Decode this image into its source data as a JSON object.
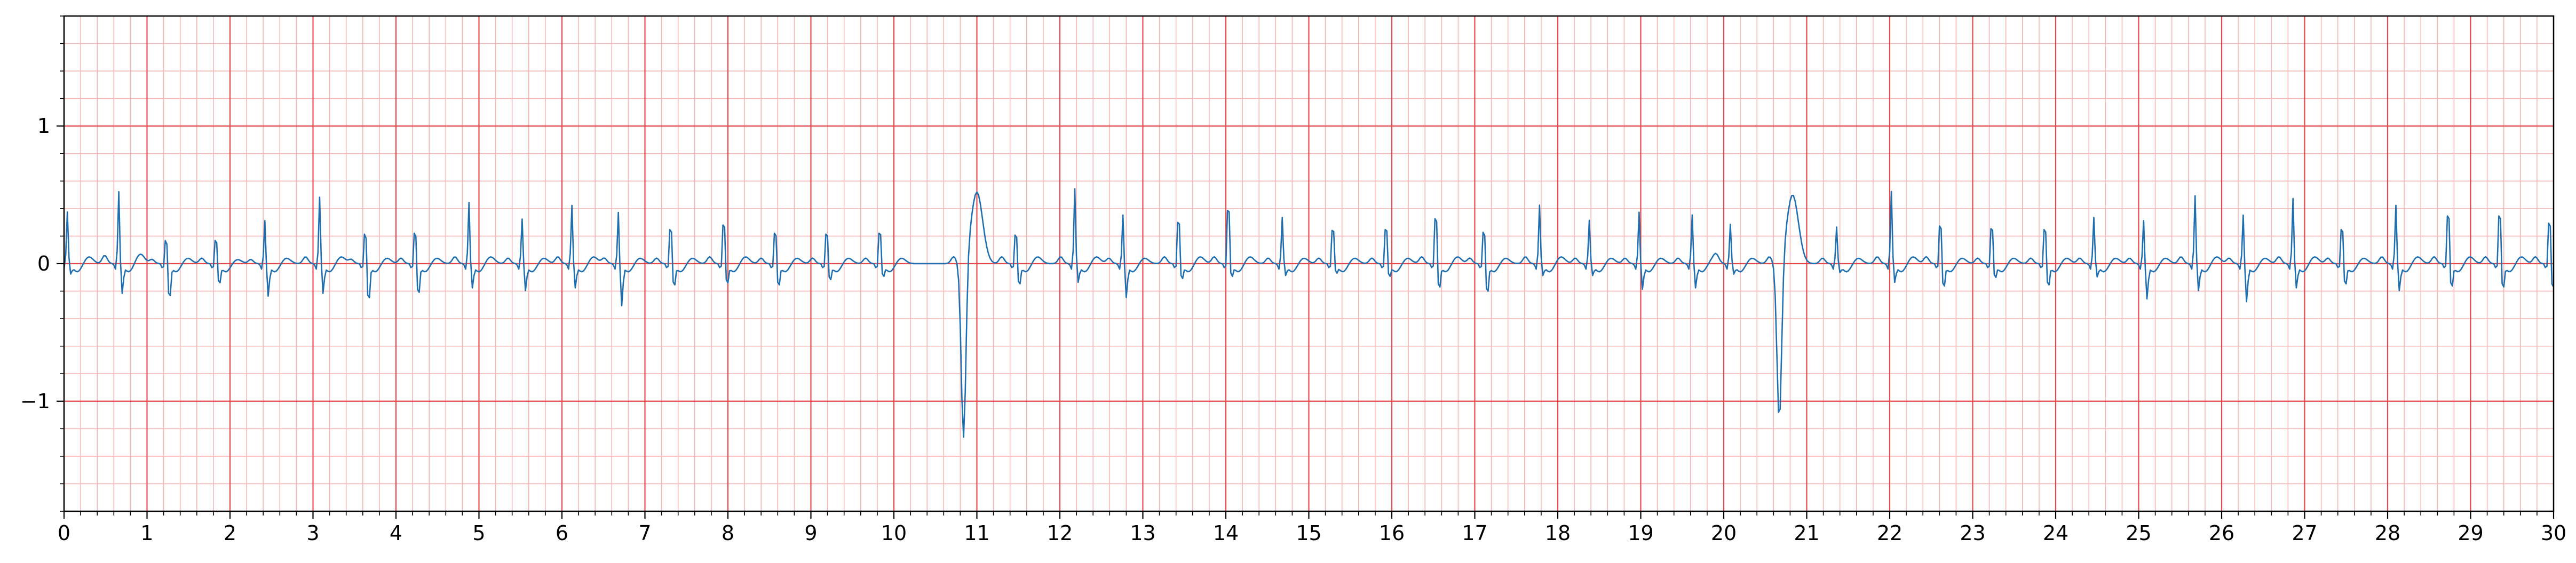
{
  "chart_data": {
    "type": "line",
    "title": "",
    "xlabel": "",
    "ylabel": "",
    "xlim": [
      0,
      30
    ],
    "ylim": [
      -1.8,
      1.8
    ],
    "x_ticks": [
      0,
      1,
      2,
      3,
      4,
      5,
      6,
      7,
      8,
      9,
      10,
      11,
      12,
      13,
      14,
      15,
      16,
      17,
      18,
      19,
      20,
      21,
      22,
      23,
      24,
      25,
      26,
      27,
      28,
      29,
      30
    ],
    "y_ticks": [
      -1,
      0,
      1
    ],
    "y_tick_labels": [
      "−1",
      "0",
      "1"
    ],
    "x_minor_step": 0.2,
    "y_minor_step": 0.2,
    "grid": {
      "major": true,
      "minor": true,
      "major_color": "#e8484b",
      "minor_color": "#f7b6b6"
    },
    "series": [
      {
        "color": "#1f6fb0",
        "sampling_step_s": 0.02,
        "baseline": 0.0,
        "beats": [
          {
            "t": 0.04,
            "r": 0.38,
            "s": -0.06,
            "p": 0.04,
            "tw": 0.05
          },
          {
            "t": 0.66,
            "r": 0.53,
            "s": -0.2,
            "p": 0.06,
            "tw": 0.07
          },
          {
            "t": 1.23,
            "r": 0.26,
            "s": -0.27,
            "p": 0.03,
            "tw": 0.04
          },
          {
            "t": 1.83,
            "r": 0.26,
            "s": -0.15,
            "p": 0.04,
            "tw": 0.03
          },
          {
            "t": 2.42,
            "r": 0.32,
            "s": -0.22,
            "p": 0.03,
            "tw": 0.04
          },
          {
            "t": 3.08,
            "r": 0.49,
            "s": -0.2,
            "p": 0.05,
            "tw": 0.05
          },
          {
            "t": 3.63,
            "r": 0.33,
            "s": -0.29,
            "p": 0.03,
            "tw": 0.04
          },
          {
            "t": 4.23,
            "r": 0.34,
            "s": -0.24,
            "p": 0.04,
            "tw": 0.04
          },
          {
            "t": 4.88,
            "r": 0.45,
            "s": -0.16,
            "p": 0.05,
            "tw": 0.05
          },
          {
            "t": 5.52,
            "r": 0.33,
            "s": -0.18,
            "p": 0.04,
            "tw": 0.04
          },
          {
            "t": 6.12,
            "r": 0.43,
            "s": -0.16,
            "p": 0.05,
            "tw": 0.05
          },
          {
            "t": 6.68,
            "r": 0.38,
            "s": -0.29,
            "p": 0.04,
            "tw": 0.04
          },
          {
            "t": 7.31,
            "r": 0.38,
            "s": -0.17,
            "p": 0.04,
            "tw": 0.04
          },
          {
            "t": 7.95,
            "r": 0.43,
            "s": -0.15,
            "p": 0.05,
            "tw": 0.05
          },
          {
            "t": 8.57,
            "r": 0.34,
            "s": -0.17,
            "p": 0.04,
            "tw": 0.04
          },
          {
            "t": 9.19,
            "r": 0.33,
            "s": -0.12,
            "p": 0.04,
            "tw": 0.04
          },
          {
            "t": 9.83,
            "r": 0.34,
            "s": -0.09,
            "p": 0.04,
            "tw": 0.04
          },
          {
            "t": 10.84,
            "r": -1.3,
            "s": 0.0,
            "p": 0.0,
            "tw": 0.52,
            "pvc": true
          },
          {
            "t": 11.47,
            "r": 0.32,
            "s": -0.16,
            "p": 0.05,
            "tw": 0.05
          },
          {
            "t": 12.18,
            "r": 0.55,
            "s": -0.12,
            "p": 0.05,
            "tw": 0.05
          },
          {
            "t": 12.76,
            "r": 0.36,
            "s": -0.23,
            "p": 0.04,
            "tw": 0.04
          },
          {
            "t": 13.43,
            "r": 0.46,
            "s": -0.11,
            "p": 0.05,
            "tw": 0.05
          },
          {
            "t": 14.03,
            "r": 0.59,
            "s": -0.09,
            "p": 0.05,
            "tw": 0.05
          },
          {
            "t": 14.68,
            "r": 0.34,
            "s": -0.07,
            "p": 0.04,
            "tw": 0.04
          },
          {
            "t": 15.29,
            "r": 0.37,
            "s": -0.06,
            "p": 0.04,
            "tw": 0.04
          },
          {
            "t": 15.93,
            "r": 0.38,
            "s": -0.09,
            "p": 0.04,
            "tw": 0.04
          },
          {
            "t": 16.53,
            "r": 0.5,
            "s": -0.19,
            "p": 0.05,
            "tw": 0.05
          },
          {
            "t": 17.11,
            "r": 0.35,
            "s": -0.23,
            "p": 0.04,
            "tw": 0.04
          },
          {
            "t": 17.78,
            "r": 0.43,
            "s": -0.07,
            "p": 0.05,
            "tw": 0.05
          },
          {
            "t": 18.38,
            "r": 0.32,
            "s": -0.07,
            "p": 0.04,
            "tw": 0.04
          },
          {
            "t": 18.98,
            "r": 0.38,
            "s": -0.17,
            "p": 0.04,
            "tw": 0.04
          },
          {
            "t": 19.62,
            "r": 0.36,
            "s": -0.16,
            "p": 0.04,
            "tw": 0.04
          },
          {
            "t": 20.08,
            "r": 0.29,
            "s": -0.06,
            "p": 0.04,
            "tw": 0.04
          },
          {
            "t": 20.67,
            "r": -1.18,
            "s": 0.0,
            "p": 0.0,
            "tw": 0.5,
            "pvc": true
          },
          {
            "t": 21.36,
            "r": 0.27,
            "s": -0.05,
            "p": 0.04,
            "tw": 0.04
          },
          {
            "t": 22.02,
            "r": 0.53,
            "s": -0.12,
            "p": 0.05,
            "tw": 0.05
          },
          {
            "t": 22.61,
            "r": 0.42,
            "s": -0.18,
            "p": 0.05,
            "tw": 0.04
          },
          {
            "t": 23.23,
            "r": 0.39,
            "s": -0.1,
            "p": 0.04,
            "tw": 0.04
          },
          {
            "t": 23.87,
            "r": 0.38,
            "s": -0.17,
            "p": 0.04,
            "tw": 0.04
          },
          {
            "t": 24.46,
            "r": 0.34,
            "s": -0.08,
            "p": 0.04,
            "tw": 0.04
          },
          {
            "t": 25.06,
            "r": 0.32,
            "s": -0.24,
            "p": 0.04,
            "tw": 0.04
          },
          {
            "t": 25.68,
            "r": 0.5,
            "s": -0.18,
            "p": 0.05,
            "tw": 0.05
          },
          {
            "t": 26.26,
            "r": 0.36,
            "s": -0.26,
            "p": 0.04,
            "tw": 0.04
          },
          {
            "t": 26.86,
            "r": 0.48,
            "s": -0.16,
            "p": 0.05,
            "tw": 0.05
          },
          {
            "t": 27.45,
            "r": 0.38,
            "s": -0.16,
            "p": 0.04,
            "tw": 0.04
          },
          {
            "t": 28.1,
            "r": 0.43,
            "s": -0.18,
            "p": 0.05,
            "tw": 0.05
          },
          {
            "t": 28.73,
            "r": 0.53,
            "s": -0.18,
            "p": 0.05,
            "tw": 0.05
          },
          {
            "t": 29.35,
            "r": 0.53,
            "s": -0.19,
            "p": 0.05,
            "tw": 0.05
          },
          {
            "t": 29.95,
            "r": 0.45,
            "s": -0.19,
            "p": 0.05,
            "tw": 0.05
          }
        ]
      }
    ]
  }
}
